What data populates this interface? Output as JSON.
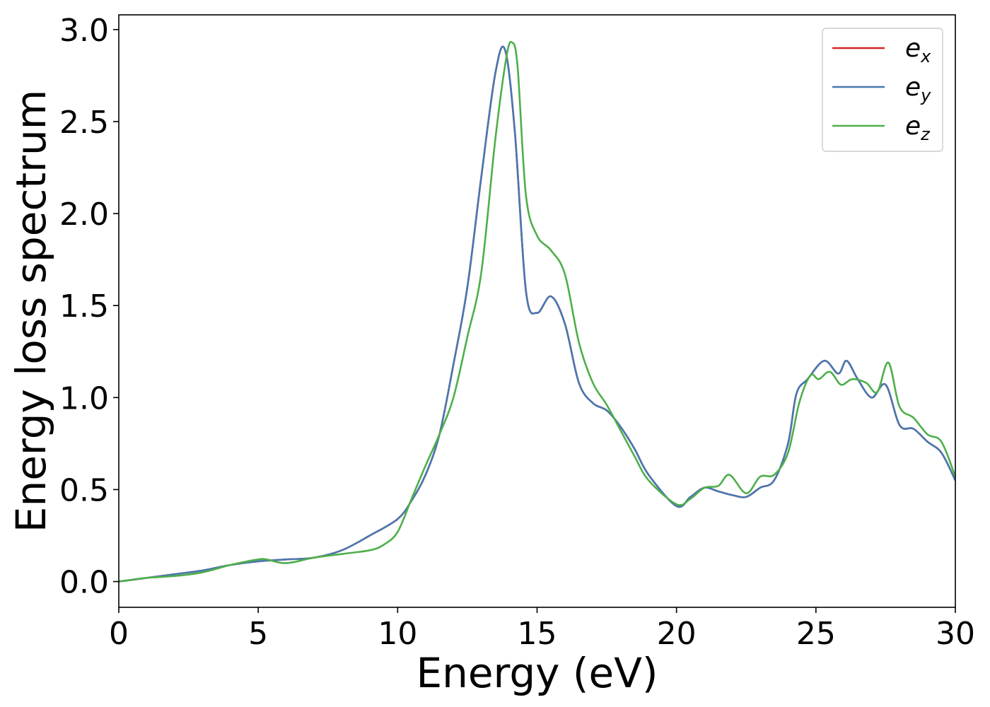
{
  "chart_data": {
    "type": "line",
    "title": "",
    "xlabel": "Energy (eV)",
    "ylabel": "Energy loss spectrum",
    "xlim": [
      0,
      30
    ],
    "ylim": [
      -0.14,
      3.08
    ],
    "xticks": [
      0,
      5,
      10,
      15,
      20,
      25,
      30
    ],
    "xtick_labels": [
      "0",
      "5",
      "10",
      "15",
      "20",
      "25",
      "30"
    ],
    "yticks": [
      0.0,
      0.5,
      1.0,
      1.5,
      2.0,
      2.5,
      3.0
    ],
    "ytick_labels": [
      "0.0",
      "0.5",
      "1.0",
      "1.5",
      "2.0",
      "2.5",
      "3.0"
    ],
    "grid": false,
    "legend_position": "top-right",
    "series": [
      {
        "name": "e_x",
        "label_base": "e",
        "label_sub": "x",
        "color": "#d62728",
        "x": [
          0,
          1,
          2,
          3,
          4,
          5,
          6,
          7,
          8,
          9,
          10,
          10.5,
          11,
          11.5,
          12,
          12.5,
          13,
          13.5,
          13.85,
          14.2,
          14.6,
          15.0,
          15.5,
          16.0,
          16.5,
          17.0,
          17.5,
          18.0,
          18.5,
          19.0,
          20.0,
          20.5,
          21.0,
          21.5,
          22.0,
          22.5,
          23.0,
          23.5,
          24.0,
          24.3,
          24.7,
          25.3,
          25.8,
          26.1,
          26.5,
          27.0,
          27.5,
          28.0,
          28.5,
          29.0,
          29.5,
          30.0
        ],
        "y": [
          0.0,
          0.02,
          0.04,
          0.06,
          0.09,
          0.11,
          0.12,
          0.13,
          0.17,
          0.25,
          0.34,
          0.44,
          0.58,
          0.8,
          1.18,
          1.6,
          2.2,
          2.76,
          2.89,
          2.45,
          1.58,
          1.46,
          1.55,
          1.4,
          1.08,
          0.97,
          0.93,
          0.84,
          0.72,
          0.58,
          0.41,
          0.46,
          0.51,
          0.49,
          0.47,
          0.46,
          0.51,
          0.55,
          0.75,
          1.02,
          1.1,
          1.2,
          1.13,
          1.2,
          1.1,
          1.0,
          1.07,
          0.85,
          0.83,
          0.76,
          0.7,
          0.55
        ]
      },
      {
        "name": "e_y",
        "label_base": "e",
        "label_sub": "y",
        "color": "#4878b0",
        "x": [
          0,
          1,
          2,
          3,
          4,
          5,
          6,
          7,
          8,
          9,
          10,
          10.5,
          11,
          11.5,
          12,
          12.5,
          13,
          13.5,
          13.85,
          14.2,
          14.6,
          15.0,
          15.5,
          16.0,
          16.5,
          17.0,
          17.5,
          18.0,
          18.5,
          19.0,
          20.0,
          20.5,
          21.0,
          21.5,
          22.0,
          22.5,
          23.0,
          23.5,
          24.0,
          24.3,
          24.7,
          25.3,
          25.8,
          26.1,
          26.5,
          27.0,
          27.5,
          28.0,
          28.5,
          29.0,
          29.5,
          30.0
        ],
        "y": [
          0.0,
          0.02,
          0.04,
          0.06,
          0.09,
          0.11,
          0.12,
          0.13,
          0.17,
          0.25,
          0.34,
          0.44,
          0.58,
          0.8,
          1.18,
          1.6,
          2.2,
          2.76,
          2.89,
          2.45,
          1.58,
          1.46,
          1.55,
          1.4,
          1.08,
          0.97,
          0.93,
          0.84,
          0.72,
          0.58,
          0.41,
          0.46,
          0.51,
          0.49,
          0.47,
          0.46,
          0.51,
          0.55,
          0.75,
          1.02,
          1.1,
          1.2,
          1.13,
          1.2,
          1.1,
          1.0,
          1.07,
          0.85,
          0.83,
          0.76,
          0.7,
          0.55
        ]
      },
      {
        "name": "e_z",
        "label_base": "e",
        "label_sub": "z",
        "color": "#4daf4a",
        "x": [
          0,
          1,
          2,
          3,
          4,
          5,
          5.3,
          6,
          7,
          8,
          9,
          9.5,
          10,
          10.5,
          11,
          11.5,
          12,
          12.5,
          13,
          13.5,
          13.9,
          14.1,
          14.3,
          14.6,
          15.0,
          15.5,
          16.0,
          16.5,
          17.0,
          17.5,
          18.0,
          18.5,
          19.0,
          20.0,
          20.5,
          21.0,
          21.5,
          21.9,
          22.5,
          23.0,
          23.5,
          24.0,
          24.4,
          24.8,
          25.1,
          25.5,
          25.9,
          26.3,
          26.8,
          27.2,
          27.6,
          28.0,
          28.5,
          29.0,
          29.5,
          30.0
        ],
        "y": [
          0.0,
          0.02,
          0.03,
          0.05,
          0.09,
          0.12,
          0.12,
          0.1,
          0.13,
          0.15,
          0.17,
          0.2,
          0.27,
          0.45,
          0.63,
          0.8,
          1.0,
          1.33,
          1.68,
          2.4,
          2.85,
          2.93,
          2.8,
          2.1,
          1.88,
          1.8,
          1.67,
          1.3,
          1.08,
          0.96,
          0.82,
          0.68,
          0.55,
          0.42,
          0.45,
          0.51,
          0.52,
          0.58,
          0.48,
          0.57,
          0.58,
          0.7,
          0.97,
          1.12,
          1.1,
          1.14,
          1.07,
          1.1,
          1.08,
          1.03,
          1.19,
          0.95,
          0.89,
          0.8,
          0.76,
          0.57
        ]
      }
    ]
  }
}
